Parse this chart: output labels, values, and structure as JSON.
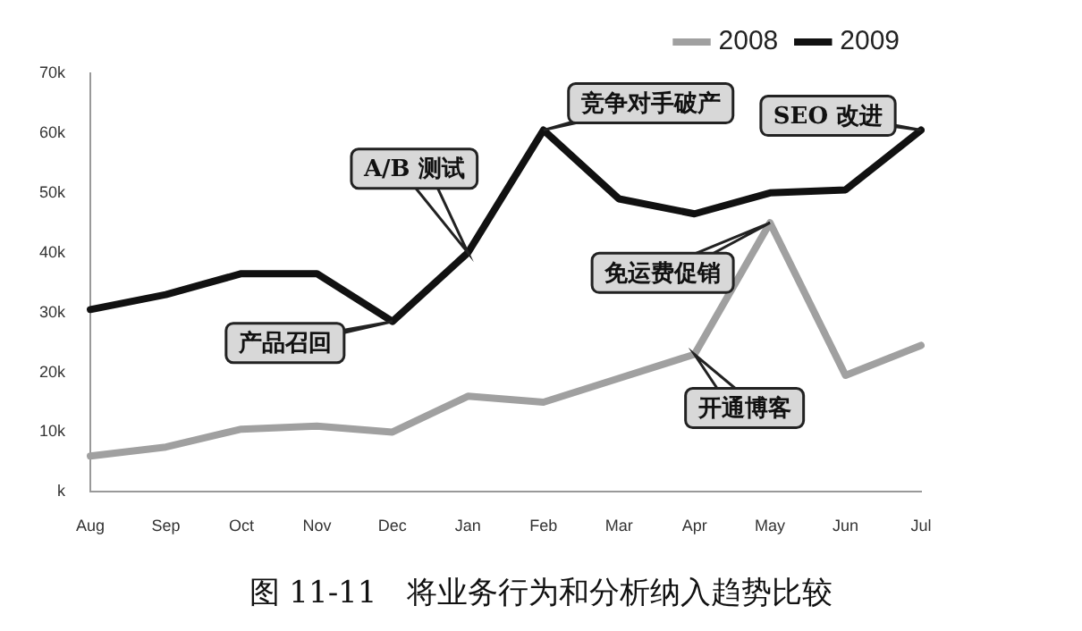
{
  "chart_data": {
    "type": "line",
    "categories": [
      "Aug",
      "Sep",
      "Oct",
      "Nov",
      "Dec",
      "Jan",
      "Feb",
      "Mar",
      "Apr",
      "May",
      "Jun",
      "Jul"
    ],
    "series": [
      {
        "name": "2008",
        "color": "#a0a0a0",
        "values": [
          6,
          7.5,
          10.5,
          11,
          10,
          16,
          15,
          19,
          23,
          45,
          19.5,
          24.5
        ]
      },
      {
        "name": "2009",
        "color": "#111111",
        "values": [
          30.5,
          33,
          36.5,
          36.5,
          28.5,
          40,
          60.5,
          49,
          46.5,
          50,
          50.5,
          60.5
        ]
      }
    ],
    "ylim": [
      0,
      70
    ],
    "yticks": [
      {
        "value": 0,
        "label": "k"
      },
      {
        "value": 10,
        "label": "10k"
      },
      {
        "value": 20,
        "label": "20k"
      },
      {
        "value": 30,
        "label": "30k"
      },
      {
        "value": 40,
        "label": "40k"
      },
      {
        "value": 50,
        "label": "50k"
      },
      {
        "value": 60,
        "label": "60k"
      },
      {
        "value": 70,
        "label": "70k"
      }
    ],
    "grid": false,
    "legend": "top right",
    "marker": "none",
    "line_style": "solid",
    "annotations": [
      {
        "text": "产品召回",
        "x": "Dec",
        "y": 28.5
      },
      {
        "text": "A/B 测试",
        "x": "Jan",
        "y": 40
      },
      {
        "text": "竞争对手破产",
        "x": "Feb",
        "y": 60.5
      },
      {
        "text": "SEO 改进",
        "x": "Jul",
        "y": 60.5
      },
      {
        "text": "免运费促销",
        "x": "May",
        "y": 45
      },
      {
        "text": "开通博客",
        "x": "Apr",
        "y": 23
      },
      "图 11-11　将业务行为和分析纳入趋势比较"
    ]
  }
}
